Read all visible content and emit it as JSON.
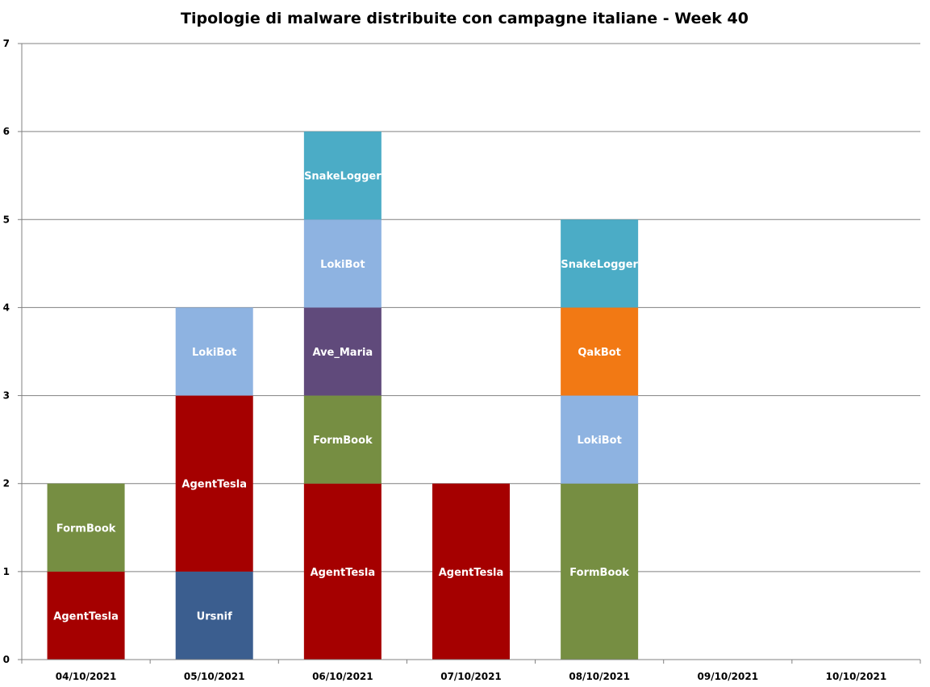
{
  "chart_data": {
    "type": "bar",
    "stacked": true,
    "title": "Tipologie di malware distribuite con campagne italiane - Week 40",
    "xlabel": "",
    "ylabel": "",
    "ylim": [
      0,
      7
    ],
    "y_ticks": [
      "0",
      "1",
      "2",
      "3",
      "4",
      "5",
      "6",
      "7"
    ],
    "grid": true,
    "legend": "none",
    "categories": [
      "04/10/2021",
      "05/10/2021",
      "06/10/2021",
      "07/10/2021",
      "08/10/2021",
      "09/10/2021",
      "10/10/2021"
    ],
    "stacks": [
      [
        {
          "name": "AgentTesla",
          "value": 1
        },
        {
          "name": "FormBook",
          "value": 1
        }
      ],
      [
        {
          "name": "Ursnif",
          "value": 1
        },
        {
          "name": "AgentTesla",
          "value": 2
        },
        {
          "name": "LokiBot",
          "value": 1
        }
      ],
      [
        {
          "name": "AgentTesla",
          "value": 2
        },
        {
          "name": "FormBook",
          "value": 1
        },
        {
          "name": "Ave_Maria",
          "value": 1
        },
        {
          "name": "LokiBot",
          "value": 1
        },
        {
          "name": "SnakeLogger",
          "value": 1
        }
      ],
      [
        {
          "name": "AgentTesla",
          "value": 2
        }
      ],
      [
        {
          "name": "FormBook",
          "value": 2
        },
        {
          "name": "LokiBot",
          "value": 1
        },
        {
          "name": "QakBot",
          "value": 1
        },
        {
          "name": "SnakeLogger",
          "value": 1
        }
      ],
      [],
      []
    ],
    "colors": {
      "AgentTesla": "#a50000",
      "FormBook": "#768e42",
      "Ursnif": "#3b5e8f",
      "LokiBot": "#8eb3e1",
      "Ave_Maria": "#604a7b",
      "SnakeLogger": "#4bacc6",
      "QakBot": "#f27914"
    },
    "grid_color": "#808080",
    "axis_color": "#808080"
  }
}
